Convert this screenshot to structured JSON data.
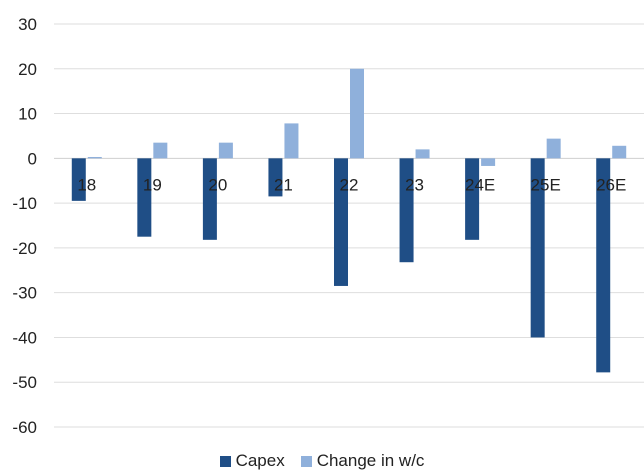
{
  "chart_data": {
    "type": "bar",
    "categories": [
      "18",
      "19",
      "20",
      "21",
      "22",
      "23",
      "24E",
      "25E",
      "26E"
    ],
    "series": [
      {
        "name": "Capex",
        "color": "#1f4e86",
        "values": [
          -9.5,
          -17.5,
          -18.2,
          -8.5,
          -28.5,
          -23.2,
          -18.2,
          -40.0,
          -47.8
        ]
      },
      {
        "name": "Change in w/c",
        "color": "#8fb0db",
        "values": [
          0.3,
          3.5,
          3.5,
          7.8,
          20.0,
          2.0,
          -1.7,
          4.4,
          2.8
        ]
      }
    ],
    "yticks": [
      30,
      20,
      10,
      0,
      -10,
      -20,
      -30,
      -40,
      -50,
      -60
    ],
    "ytick_labels": [
      "30",
      "20",
      "10",
      "0",
      "-10",
      "-20",
      "-30",
      "-40",
      "-50",
      "-60"
    ],
    "ylim": [
      -60,
      30
    ],
    "grid": true,
    "legend": "bottom"
  }
}
